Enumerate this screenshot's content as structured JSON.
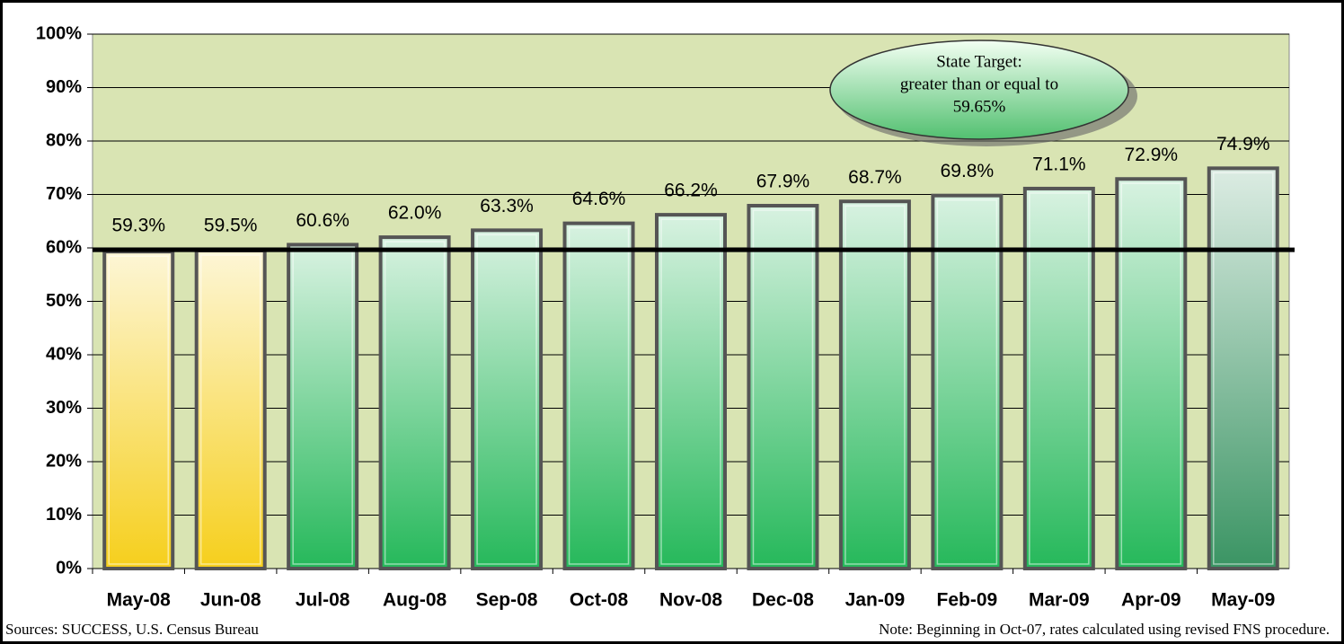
{
  "chart_data": {
    "type": "bar",
    "categories": [
      "May-08",
      "Jun-08",
      "Jul-08",
      "Aug-08",
      "Sep-08",
      "Oct-08",
      "Nov-08",
      "Dec-08",
      "Jan-09",
      "Feb-09",
      "Mar-09",
      "Apr-09",
      "May-09"
    ],
    "values": [
      59.3,
      59.5,
      60.6,
      62.0,
      63.3,
      64.6,
      66.2,
      67.9,
      68.7,
      69.8,
      71.1,
      72.9,
      74.9
    ],
    "value_labels": [
      "59.3%",
      "59.5%",
      "60.6%",
      "62.0%",
      "63.3%",
      "64.6%",
      "66.2%",
      "67.9%",
      "68.7%",
      "69.8%",
      "71.1%",
      "72.9%",
      "74.9%"
    ],
    "colors": [
      "#f6cf1c",
      "#f6cf1c",
      "#25b85a",
      "#25b85a",
      "#25b85a",
      "#25b85a",
      "#25b85a",
      "#25b85a",
      "#25b85a",
      "#25b85a",
      "#25b85a",
      "#25b85a",
      "#3a9463"
    ],
    "ylim": [
      0,
      100
    ],
    "yticks": [
      {
        "value": 0,
        "label": "0%"
      },
      {
        "value": 10,
        "label": "10%"
      },
      {
        "value": 20,
        "label": "20%"
      },
      {
        "value": 30,
        "label": "30%"
      },
      {
        "value": 40,
        "label": "40%"
      },
      {
        "value": 50,
        "label": "50%"
      },
      {
        "value": 60,
        "label": "60%"
      },
      {
        "value": 70,
        "label": "70%"
      },
      {
        "value": 80,
        "label": "80%"
      },
      {
        "value": 90,
        "label": "90%"
      },
      {
        "value": 100,
        "label": "100%"
      }
    ],
    "grid": true,
    "target": 59.65,
    "annotation": [
      "State Target:",
      "greater than or equal to",
      "59.65%"
    ],
    "source": "Sources: SUCCESS, U.S. Census Bureau",
    "note": "Note: Beginning in Oct-07, rates calculated using revised FNS procedure."
  }
}
